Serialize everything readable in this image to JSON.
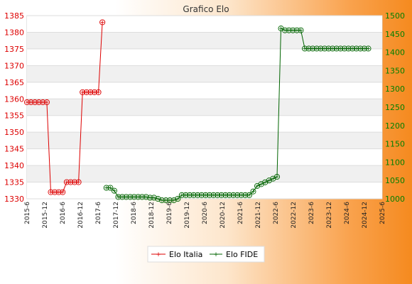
{
  "chart_data": {
    "type": "line",
    "title": "Grafico Elo",
    "grid": true,
    "legend_position": "bottom-center",
    "y_left": {
      "range": [
        1330,
        1385
      ],
      "ticks": [
        1330,
        1335,
        1340,
        1345,
        1350,
        1355,
        1360,
        1365,
        1370,
        1375,
        1380,
        1385
      ],
      "color": "#dd0000"
    },
    "y_right": {
      "range": [
        1000,
        1500
      ],
      "ticks": [
        1000,
        1050,
        1100,
        1150,
        1200,
        1250,
        1300,
        1350,
        1400,
        1450,
        1500
      ],
      "color": "#008000"
    },
    "x_count": 180,
    "x_tick_labels": [
      "2015-6",
      "2015-12",
      "2016-6",
      "2016-12",
      "2017-6",
      "2017-12",
      "2018-6",
      "2018-12",
      "2019-6",
      "2019-12",
      "2020-6",
      "2020-12",
      "2021-6",
      "2021-12",
      "2022-6",
      "2022-12",
      "2023-6",
      "2023-12",
      "2024-6",
      "2024-12",
      "2025-6"
    ],
    "series": [
      {
        "name": "Elo Italia",
        "axis": "left",
        "color": "#dd0000",
        "points": [
          [
            0,
            1359
          ],
          [
            2,
            1359
          ],
          [
            4,
            1359
          ],
          [
            6,
            1359
          ],
          [
            8,
            1359
          ],
          [
            10,
            1359
          ],
          [
            12,
            1332
          ],
          [
            14,
            1332
          ],
          [
            16,
            1332
          ],
          [
            18,
            1332
          ],
          [
            20,
            1335
          ],
          [
            22,
            1335
          ],
          [
            24,
            1335
          ],
          [
            26,
            1335
          ],
          [
            28,
            1362
          ],
          [
            30,
            1362
          ],
          [
            32,
            1362
          ],
          [
            34,
            1362
          ],
          [
            36,
            1362
          ],
          [
            38,
            1383
          ]
        ]
      },
      {
        "name": "Elo FIDE",
        "axis": "right",
        "color": "#006400",
        "points": [
          [
            40,
            1030
          ],
          [
            42,
            1030
          ],
          [
            44,
            1022
          ],
          [
            46,
            1005
          ],
          [
            48,
            1005
          ],
          [
            50,
            1005
          ],
          [
            52,
            1005
          ],
          [
            54,
            1005
          ],
          [
            56,
            1005
          ],
          [
            58,
            1005
          ],
          [
            60,
            1005
          ],
          [
            62,
            1003
          ],
          [
            64,
            1003
          ],
          [
            66,
            1000
          ],
          [
            68,
            996
          ],
          [
            70,
            996
          ],
          [
            72,
            996
          ],
          [
            74,
            996
          ],
          [
            76,
            1000
          ],
          [
            78,
            1010
          ],
          [
            80,
            1010
          ],
          [
            82,
            1010
          ],
          [
            84,
            1010
          ],
          [
            86,
            1010
          ],
          [
            88,
            1010
          ],
          [
            90,
            1010
          ],
          [
            92,
            1010
          ],
          [
            94,
            1010
          ],
          [
            96,
            1010
          ],
          [
            98,
            1010
          ],
          [
            100,
            1010
          ],
          [
            102,
            1010
          ],
          [
            104,
            1010
          ],
          [
            106,
            1010
          ],
          [
            108,
            1010
          ],
          [
            110,
            1010
          ],
          [
            112,
            1010
          ],
          [
            114,
            1020
          ],
          [
            116,
            1035
          ],
          [
            118,
            1040
          ],
          [
            120,
            1045
          ],
          [
            122,
            1050
          ],
          [
            124,
            1055
          ],
          [
            126,
            1060
          ],
          [
            128,
            1465
          ],
          [
            130,
            1460
          ],
          [
            132,
            1460
          ],
          [
            134,
            1460
          ],
          [
            136,
            1460
          ],
          [
            138,
            1460
          ],
          [
            140,
            1410
          ],
          [
            142,
            1410
          ],
          [
            144,
            1410
          ],
          [
            146,
            1410
          ],
          [
            148,
            1410
          ],
          [
            150,
            1410
          ],
          [
            152,
            1410
          ],
          [
            154,
            1410
          ],
          [
            156,
            1410
          ],
          [
            158,
            1410
          ],
          [
            160,
            1410
          ],
          [
            162,
            1410
          ],
          [
            164,
            1410
          ],
          [
            166,
            1410
          ],
          [
            168,
            1410
          ],
          [
            170,
            1410
          ],
          [
            172,
            1410
          ]
        ]
      }
    ]
  }
}
